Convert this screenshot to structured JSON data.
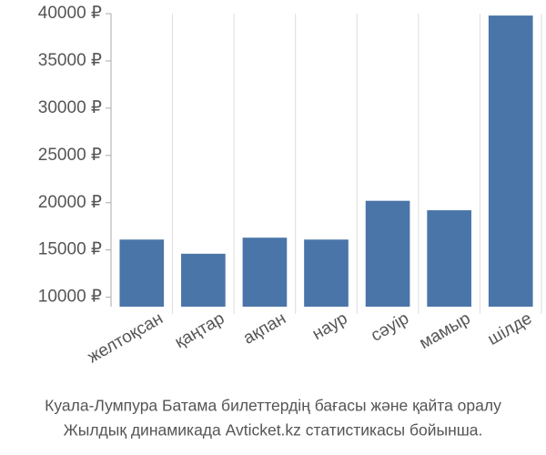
{
  "chart_data": {
    "type": "bar",
    "caption": [
      "Куала-Лумпура Батама билеттердің бағасы және қайта оралу",
      "Жылдық динамикада Avticket.kz статистикасы бойынша."
    ],
    "categories": [
      "желтоқсан",
      "қаңтар",
      "ақпан",
      "наур",
      "сәуір",
      "мамыр",
      "шілде"
    ],
    "values": [
      16100,
      14600,
      16300,
      16100,
      20200,
      19200,
      39800
    ],
    "color": "#4a75a8",
    "ylim": [
      9000,
      40000
    ],
    "yticks": [
      {
        "value": 10000,
        "label": "10000 ₽"
      },
      {
        "value": 15000,
        "label": "15000 ₽"
      },
      {
        "value": 20000,
        "label": "20000 ₽"
      },
      {
        "value": 25000,
        "label": "25000 ₽"
      },
      {
        "value": 30000,
        "label": "30000 ₽"
      },
      {
        "value": 35000,
        "label": "35000 ₽"
      },
      {
        "value": 40000,
        "label": "40000 ₽"
      }
    ],
    "grid": true
  }
}
